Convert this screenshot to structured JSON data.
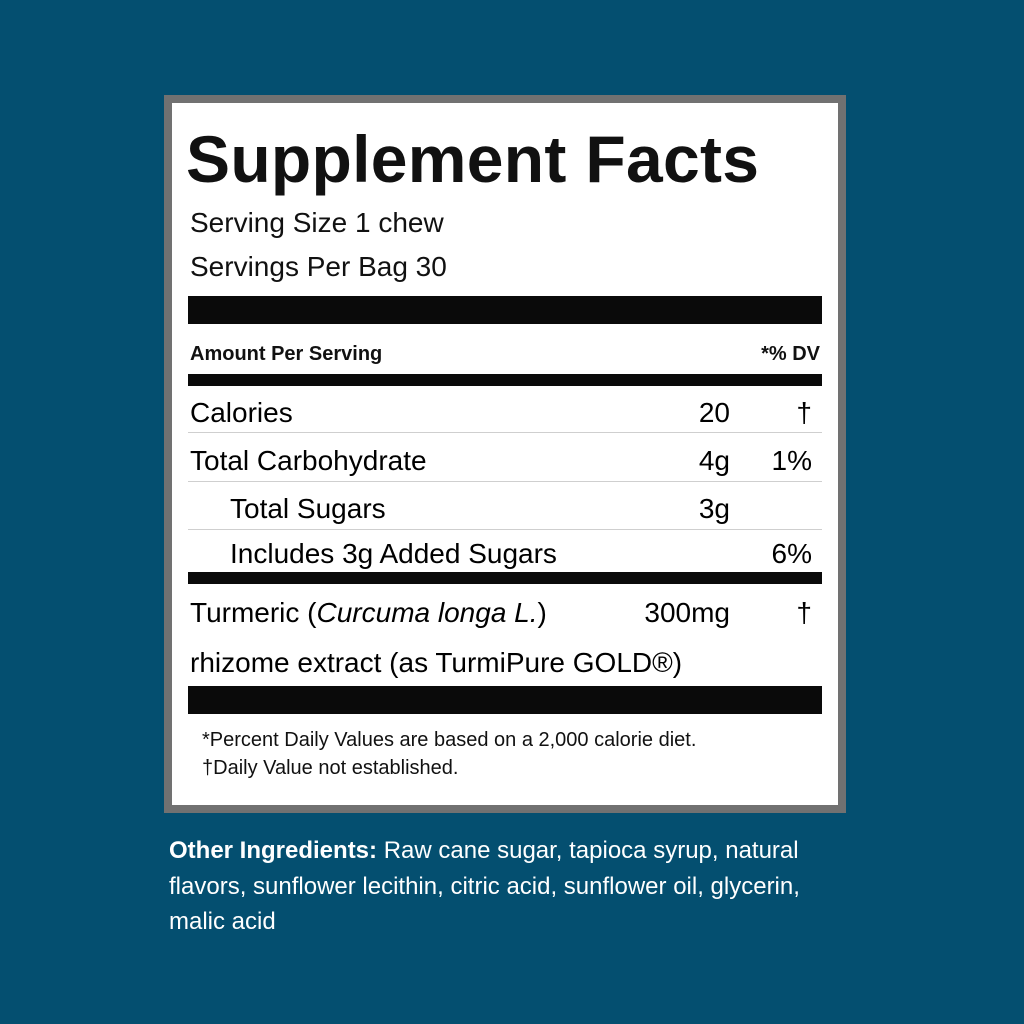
{
  "title": "Supplement Facts",
  "serving_size": "Serving Size 1 chew",
  "servings_per": "Servings Per Bag 30",
  "header": {
    "amount": "Amount Per Serving",
    "dv": "*% DV"
  },
  "rows": [
    {
      "name": "Calories",
      "amount": "20",
      "dv": "†"
    },
    {
      "name": "Total Carbohydrate",
      "amount": "4g",
      "dv": "1%"
    },
    {
      "name": "Total Sugars",
      "amount": "3g",
      "dv": ""
    },
    {
      "name": "Includes 3g Added Sugars",
      "amount": "",
      "dv": "6%"
    }
  ],
  "ingredient": {
    "name_prefix": "Turmeric (",
    "name_italic": "Curcuma longa L.",
    "name_suffix": ")",
    "amount": "300mg",
    "dv": "†",
    "line2": "rhizome extract (as TurmiPure GOLD®)"
  },
  "footnotes": [
    "*Percent Daily Values are based on a 2,000 calorie diet.",
    "†Daily Value not established."
  ],
  "other_ingredients": {
    "label": "Other Ingredients:",
    "text": " Raw cane sugar, tapioca syrup, natural flavors, sunflower lecithin, citric acid, sunflower oil, glycerin, malic acid"
  },
  "colors": {
    "background": "#044f70",
    "border": "#717171"
  }
}
